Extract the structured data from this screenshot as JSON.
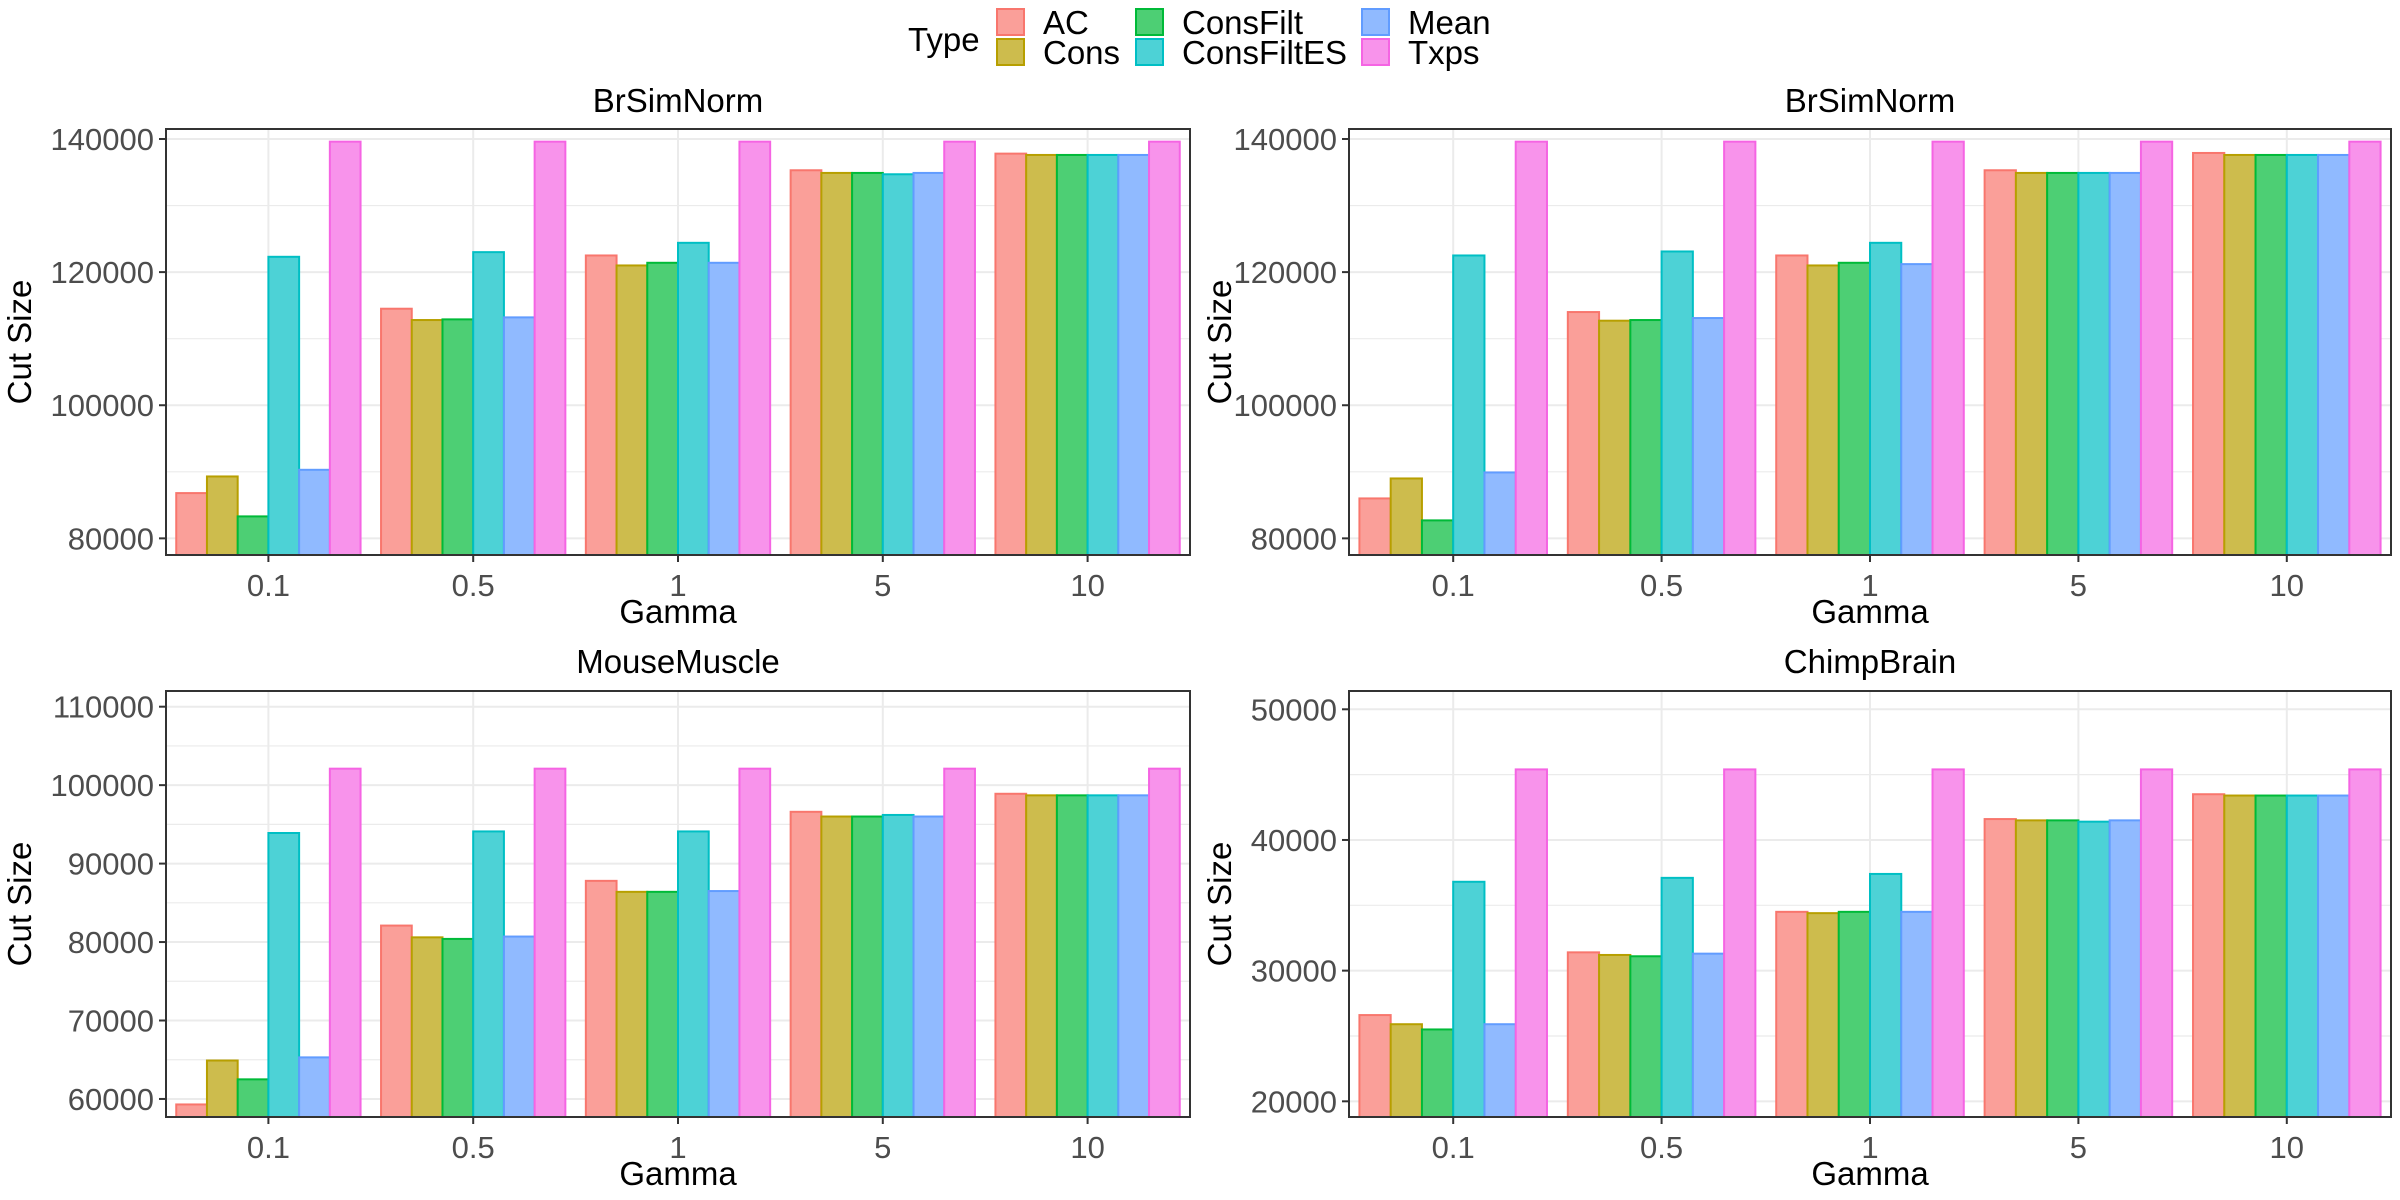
{
  "legend": {
    "title": "Type",
    "items": [
      {
        "label": "AC",
        "color": "#F8766D"
      },
      {
        "label": "Cons",
        "color": "#B79F00"
      },
      {
        "label": "ConsFilt",
        "color": "#00BA38"
      },
      {
        "label": "ConsFiltES",
        "color": "#00BFC4"
      },
      {
        "label": "Mean",
        "color": "#619CFF"
      },
      {
        "label": "Txps",
        "color": "#F564E3"
      }
    ]
  },
  "chart_data": [
    {
      "type": "bar",
      "title": "BrSimNorm",
      "xlabel": "Gamma",
      "ylabel": "Cut Size",
      "categories": [
        "0.1",
        "0.5",
        "1",
        "5",
        "10"
      ],
      "ylim": [
        77500,
        141500
      ],
      "yticks": [
        80000,
        100000,
        120000,
        140000
      ],
      "series": [
        {
          "name": "AC",
          "values": [
            86800,
            114500,
            122500,
            135300,
            137800
          ]
        },
        {
          "name": "Cons",
          "values": [
            89300,
            112800,
            121000,
            134900,
            137600
          ]
        },
        {
          "name": "ConsFilt",
          "values": [
            83300,
            112900,
            121400,
            134900,
            137600
          ]
        },
        {
          "name": "ConsFiltES",
          "values": [
            122300,
            123000,
            124400,
            134700,
            137600
          ]
        },
        {
          "name": "Mean",
          "values": [
            90300,
            113200,
            121400,
            134900,
            137600
          ]
        },
        {
          "name": "Txps",
          "values": [
            139600,
            139600,
            139600,
            139600,
            139600
          ]
        }
      ]
    },
    {
      "type": "bar",
      "title": "BrSimNorm",
      "xlabel": "Gamma",
      "ylabel": "Cut Size",
      "categories": [
        "0.1",
        "0.5",
        "1",
        "5",
        "10"
      ],
      "ylim": [
        77500,
        141500
      ],
      "yticks": [
        80000,
        100000,
        120000,
        140000
      ],
      "series": [
        {
          "name": "AC",
          "values": [
            86000,
            114000,
            122500,
            135300,
            137900
          ]
        },
        {
          "name": "Cons",
          "values": [
            89000,
            112700,
            121000,
            134900,
            137600
          ]
        },
        {
          "name": "ConsFilt",
          "values": [
            82700,
            112800,
            121400,
            134900,
            137600
          ]
        },
        {
          "name": "ConsFiltES",
          "values": [
            122500,
            123100,
            124400,
            134900,
            137600
          ]
        },
        {
          "name": "Mean",
          "values": [
            89900,
            113100,
            121200,
            134900,
            137600
          ]
        },
        {
          "name": "Txps",
          "values": [
            139600,
            139600,
            139600,
            139600,
            139600
          ]
        }
      ]
    },
    {
      "type": "bar",
      "title": "MouseMuscle",
      "xlabel": "Gamma",
      "ylabel": "Cut Size",
      "categories": [
        "0.1",
        "0.5",
        "1",
        "5",
        "10"
      ],
      "ylim": [
        57700,
        112000
      ],
      "yticks": [
        60000,
        70000,
        80000,
        90000,
        100000,
        110000
      ],
      "series": [
        {
          "name": "AC",
          "values": [
            59300,
            82100,
            87800,
            96600,
            98900
          ]
        },
        {
          "name": "Cons",
          "values": [
            64900,
            80600,
            86400,
            96000,
            98700
          ]
        },
        {
          "name": "ConsFilt",
          "values": [
            62500,
            80400,
            86400,
            96000,
            98700
          ]
        },
        {
          "name": "ConsFiltES",
          "values": [
            93900,
            94100,
            94100,
            96200,
            98700
          ]
        },
        {
          "name": "Mean",
          "values": [
            65300,
            80700,
            86500,
            96000,
            98700
          ]
        },
        {
          "name": "Txps",
          "values": [
            102100,
            102100,
            102100,
            102100,
            102100
          ]
        }
      ]
    },
    {
      "type": "bar",
      "title": "ChimpBrain",
      "xlabel": "Gamma",
      "ylabel": "Cut Size",
      "categories": [
        "0.1",
        "0.5",
        "1",
        "5",
        "10"
      ],
      "ylim": [
        18800,
        51400
      ],
      "yticks": [
        20000,
        30000,
        40000,
        50000
      ],
      "series": [
        {
          "name": "AC",
          "values": [
            26600,
            31400,
            34500,
            41600,
            43500
          ]
        },
        {
          "name": "Cons",
          "values": [
            25900,
            31200,
            34400,
            41500,
            43400
          ]
        },
        {
          "name": "ConsFilt",
          "values": [
            25500,
            31100,
            34500,
            41500,
            43400
          ]
        },
        {
          "name": "ConsFiltES",
          "values": [
            36800,
            37100,
            37400,
            41400,
            43400
          ]
        },
        {
          "name": "Mean",
          "values": [
            25900,
            31300,
            34500,
            41500,
            43400
          ]
        },
        {
          "name": "Txps",
          "values": [
            45400,
            45400,
            45400,
            45400,
            45400
          ]
        }
      ]
    }
  ]
}
